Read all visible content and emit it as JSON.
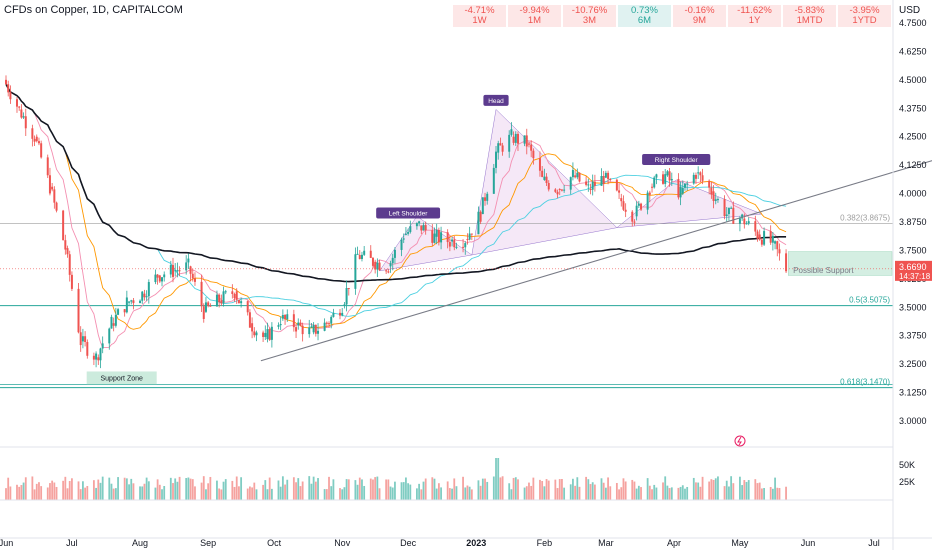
{
  "header": {
    "title": "CFDs on Copper, 1D, CAPITALCOM",
    "currency": "USD",
    "performance": [
      {
        "value": "-4.71%",
        "period": "1W",
        "color": "#ef5350"
      },
      {
        "value": "-9.94%",
        "period": "1M",
        "color": "#ef5350"
      },
      {
        "value": "-10.76%",
        "period": "3M",
        "color": "#ef5350"
      },
      {
        "value": "0.73%",
        "period": "6M",
        "color": "#26a69a"
      },
      {
        "value": "-0.16%",
        "period": "9M",
        "color": "#ef5350"
      },
      {
        "value": "-11.62%",
        "period": "1Y",
        "color": "#ef5350"
      },
      {
        "value": "-5.83%",
        "period": "1MTD",
        "color": "#ef5350"
      },
      {
        "value": "-3.95%",
        "period": "1YTD",
        "color": "#ef5350"
      }
    ]
  },
  "chart_data": {
    "type": "candlestick",
    "x_ticks": [
      "Jun",
      "Jul",
      "Aug",
      "Sep",
      "Oct",
      "Nov",
      "Dec",
      "2023",
      "Feb",
      "Mar",
      "Apr",
      "May",
      "Jun",
      "Jul"
    ],
    "y_ticks": [
      "4.7500",
      "4.6250",
      "4.5000",
      "4.3750",
      "4.2500",
      "4.1250",
      "4.0000",
      "3.8750",
      "3.7500",
      "3.6250",
      "3.5000",
      "3.3750",
      "3.2500",
      "3.1250",
      "3.0000"
    ],
    "ylim": [
      2.93,
      4.78
    ],
    "volume_ticks": [
      "50K",
      "25K"
    ],
    "current_price": "3.6690",
    "countdown": "14:37:18",
    "fib_levels": [
      {
        "label": "0.382(3.8675)",
        "value": 3.8675,
        "color": "#9e9e9e"
      },
      {
        "label": "0.5(3.5075)",
        "value": 3.5075,
        "color": "#26a69a"
      },
      {
        "label": "0.618(3.1470)",
        "value": 3.147,
        "color": "#26a69a"
      }
    ],
    "annotations": [
      {
        "label": "Head",
        "date": "2023-01-10",
        "price": 4.39
      },
      {
        "label": "Left Shoulder",
        "date": "2022-12-01",
        "price": 3.895
      },
      {
        "label": "Right Shoulder",
        "date": "2023-04-02",
        "price": 4.13
      },
      {
        "label": "Support Zone",
        "date": "2022-07-10",
        "price": 3.165
      },
      {
        "label": "Possible Support",
        "date": "2023-06-08",
        "price": 3.665
      }
    ],
    "support_box": {
      "date_start": "2023-05-23",
      "date_end": "2023-07-20",
      "price_top": 3.745,
      "price_bottom": 3.64
    },
    "trendline": {
      "date_start": "2022-09-25",
      "price_start": 3.265,
      "date_end": "2023-07-31",
      "price_end": 4.155
    },
    "hs_pattern": [
      {
        "date": "2022-11-18",
        "price": 3.66
      },
      {
        "date": "2022-12-05",
        "price": 3.9
      },
      {
        "date": "2022-12-30",
        "price": 3.73
      },
      {
        "date": "2023-01-10",
        "price": 4.37
      },
      {
        "date": "2023-03-06",
        "price": 3.85
      },
      {
        "date": "2023-04-02",
        "price": 4.06
      },
      {
        "date": "2023-05-11",
        "price": 3.91
      }
    ],
    "ohlc_weekly": [
      {
        "date": "2022-06-01",
        "close": 4.5
      },
      {
        "date": "2022-06-08",
        "close": 4.37
      },
      {
        "date": "2022-06-15",
        "close": 4.25
      },
      {
        "date": "2022-06-22",
        "close": 4.03
      },
      {
        "date": "2022-06-29",
        "close": 3.76
      },
      {
        "date": "2022-07-06",
        "close": 3.35
      },
      {
        "date": "2022-07-13",
        "close": 3.28
      },
      {
        "date": "2022-07-20",
        "close": 3.43
      },
      {
        "date": "2022-07-27",
        "close": 3.52
      },
      {
        "date": "2022-08-03",
        "close": 3.56
      },
      {
        "date": "2022-08-10",
        "close": 3.64
      },
      {
        "date": "2022-08-17",
        "close": 3.66
      },
      {
        "date": "2022-08-24",
        "close": 3.68
      },
      {
        "date": "2022-08-31",
        "close": 3.48
      },
      {
        "date": "2022-09-07",
        "close": 3.53
      },
      {
        "date": "2022-09-14",
        "close": 3.57
      },
      {
        "date": "2022-09-21",
        "close": 3.43
      },
      {
        "date": "2022-09-28",
        "close": 3.36
      },
      {
        "date": "2022-10-05",
        "close": 3.45
      },
      {
        "date": "2022-10-12",
        "close": 3.42
      },
      {
        "date": "2022-10-19",
        "close": 3.39
      },
      {
        "date": "2022-10-26",
        "close": 3.43
      },
      {
        "date": "2022-11-02",
        "close": 3.51
      },
      {
        "date": "2022-11-09",
        "close": 3.73
      },
      {
        "date": "2022-11-16",
        "close": 3.7
      },
      {
        "date": "2022-11-23",
        "close": 3.68
      },
      {
        "date": "2022-11-30",
        "close": 3.82
      },
      {
        "date": "2022-12-07",
        "close": 3.86
      },
      {
        "date": "2022-12-14",
        "close": 3.81
      },
      {
        "date": "2022-12-21",
        "close": 3.79
      },
      {
        "date": "2022-12-28",
        "close": 3.8
      },
      {
        "date": "2023-01-04",
        "close": 3.91
      },
      {
        "date": "2023-01-11",
        "close": 4.18
      },
      {
        "date": "2023-01-18",
        "close": 4.25
      },
      {
        "date": "2023-01-25",
        "close": 4.22
      },
      {
        "date": "2023-02-01",
        "close": 4.06
      },
      {
        "date": "2023-02-08",
        "close": 4.02
      },
      {
        "date": "2023-02-15",
        "close": 4.08
      },
      {
        "date": "2023-02-22",
        "close": 4.02
      },
      {
        "date": "2023-03-01",
        "close": 4.07
      },
      {
        "date": "2023-03-08",
        "close": 3.98
      },
      {
        "date": "2023-03-15",
        "close": 3.9
      },
      {
        "date": "2023-03-22",
        "close": 4.03
      },
      {
        "date": "2023-03-29",
        "close": 4.08
      },
      {
        "date": "2023-04-05",
        "close": 4.0
      },
      {
        "date": "2023-04-12",
        "close": 4.09
      },
      {
        "date": "2023-04-19",
        "close": 4.01
      },
      {
        "date": "2023-04-26",
        "close": 3.91
      },
      {
        "date": "2023-05-03",
        "close": 3.89
      },
      {
        "date": "2023-05-10",
        "close": 3.82
      },
      {
        "date": "2023-05-17",
        "close": 3.78
      },
      {
        "date": "2023-05-23",
        "close": 3.669
      }
    ]
  }
}
